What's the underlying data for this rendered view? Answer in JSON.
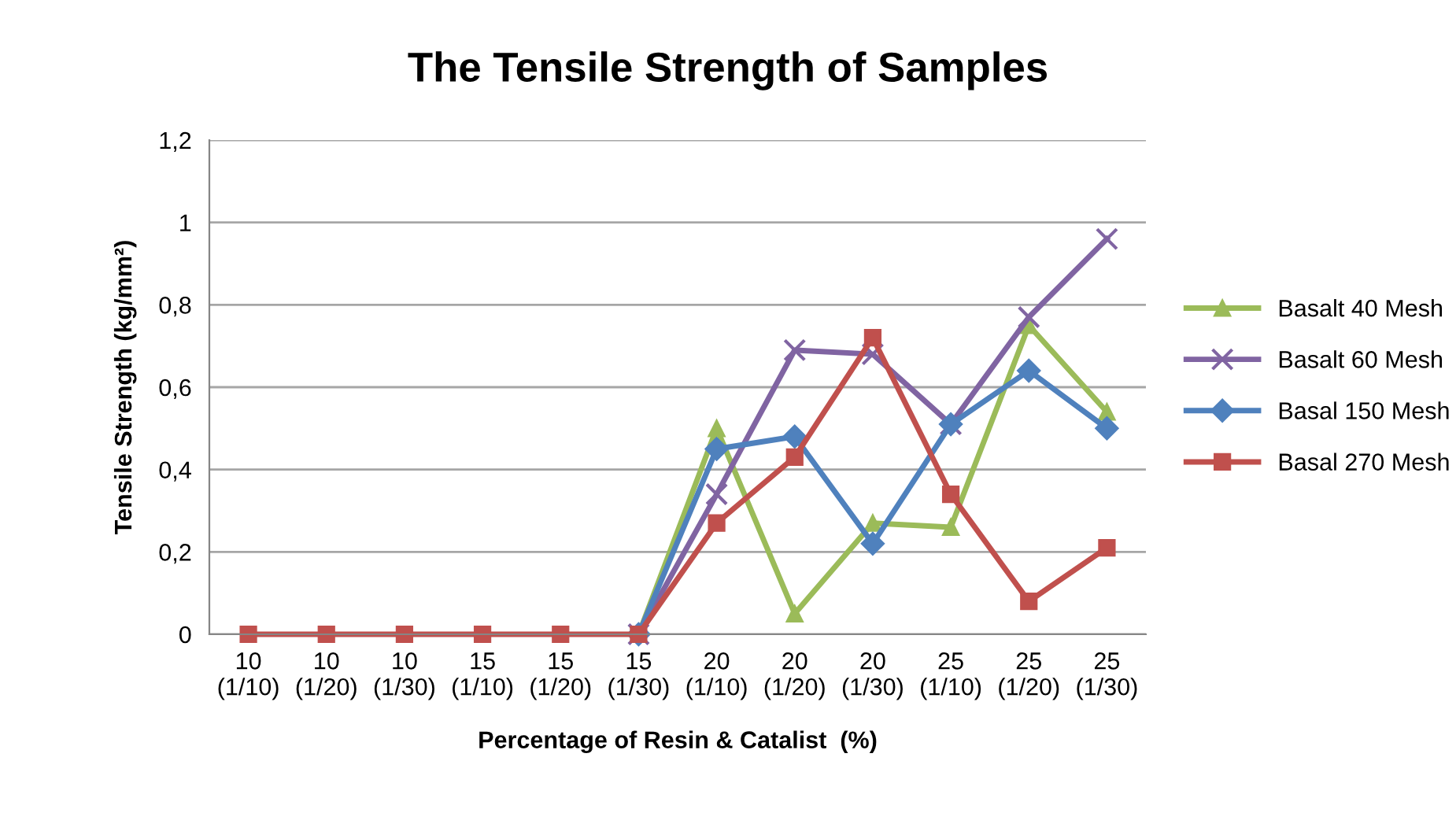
{
  "chart_data": {
    "type": "line",
    "title": "The Tensile Strength of Samples",
    "xlabel": "Percentage of Resin & Catalist  (%)",
    "ylabel": "Tensile Strength (kg/mm²)",
    "categories": [
      "10\n(1/10)",
      "10\n(1/20)",
      "10\n(1/30)",
      "15\n(1/10)",
      "15\n(1/20)",
      "15\n(1/30)",
      "20\n(1/10)",
      "20\n(1/20)",
      "20\n(1/30)",
      "25\n(1/10)",
      "25\n(1/20)",
      "25\n(1/30)"
    ],
    "series": [
      {
        "name": "Basalt 40 Mesh",
        "color": "#9bbb59",
        "marker": "triangle",
        "values": [
          null,
          null,
          null,
          null,
          null,
          0,
          0.5,
          0.05,
          0.27,
          0.26,
          0.75,
          0.54
        ]
      },
      {
        "name": "Basalt 60 Mesh",
        "color": "#8064a2",
        "marker": "cross",
        "values": [
          null,
          null,
          null,
          null,
          null,
          0,
          0.34,
          0.69,
          0.68,
          0.51,
          0.77,
          0.96
        ]
      },
      {
        "name": "Basal 150 Mesh",
        "color": "#4f81bd",
        "marker": "diamond",
        "values": [
          null,
          null,
          null,
          null,
          null,
          0,
          0.45,
          0.48,
          0.22,
          0.51,
          0.64,
          0.5
        ]
      },
      {
        "name": "Basal 270 Mesh",
        "color": "#c0504d",
        "marker": "square",
        "values": [
          0,
          0,
          0,
          0,
          0,
          0,
          0.27,
          0.43,
          0.72,
          0.34,
          0.08,
          0.21
        ]
      }
    ],
    "ylim": [
      0,
      1.2
    ],
    "yticks": [
      {
        "value": 0,
        "label": "0"
      },
      {
        "value": 0.2,
        "label": "0,2"
      },
      {
        "value": 0.4,
        "label": "0,4"
      },
      {
        "value": 0.6,
        "label": "0,6"
      },
      {
        "value": 0.8,
        "label": "0,8"
      },
      {
        "value": 1,
        "label": "1"
      },
      {
        "value": 1.2,
        "label": "1,2"
      }
    ],
    "grid": "y",
    "legend": "right",
    "line_style": "solid"
  }
}
